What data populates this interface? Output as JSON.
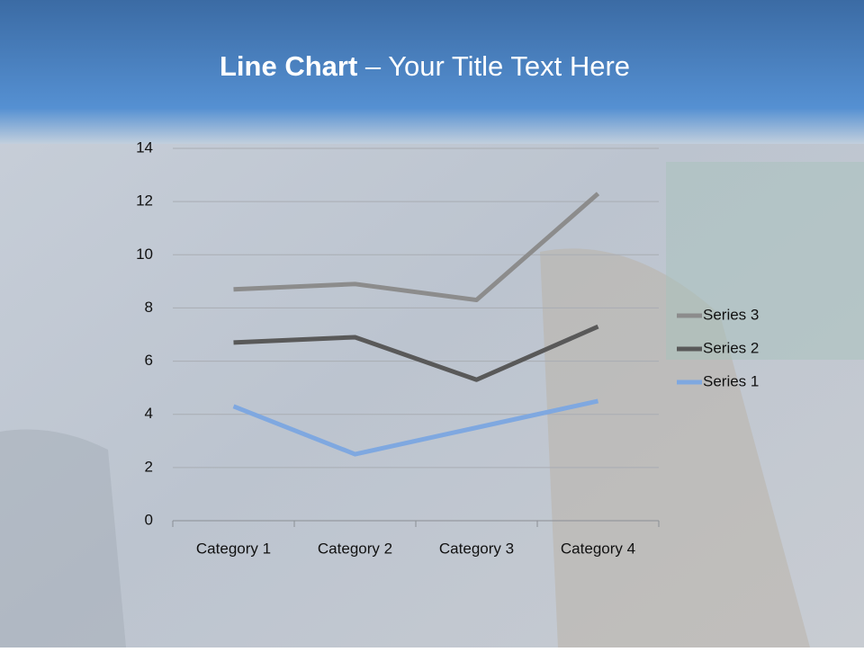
{
  "title_bold": "Line Chart",
  "title_rest": "– Your Title Text Here",
  "chart_data": {
    "type": "line",
    "stacked": true,
    "categories": [
      "Category 1",
      "Category 2",
      "Category 3",
      "Category 4"
    ],
    "series": [
      {
        "name": "Series 1",
        "color": "#7fa8e0",
        "values": [
          4.3,
          2.5,
          3.5,
          4.5
        ]
      },
      {
        "name": "Series 2",
        "color": "#595959",
        "values": [
          2.4,
          4.4,
          1.8,
          2.8
        ]
      },
      {
        "name": "Series 3",
        "color": "#8c8c8c",
        "values": [
          2,
          2,
          3,
          5
        ]
      }
    ],
    "ylim": [
      0,
      14
    ],
    "yticks": [
      0,
      2,
      4,
      6,
      8,
      10,
      12,
      14
    ],
    "grid": true,
    "legend": "right"
  }
}
